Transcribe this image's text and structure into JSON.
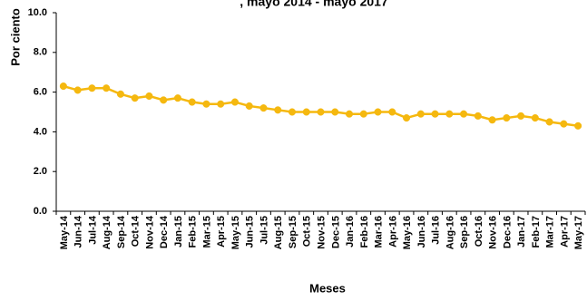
{
  "chart_data": {
    "type": "line",
    "title": ", mayo 2014 - mayo 2017",
    "xlabel": "Meses",
    "ylabel": "Por ciento",
    "ylim": [
      0,
      10
    ],
    "y_ticks": [
      "0.0",
      "2.0",
      "4.0",
      "6.0",
      "8.0",
      "10.0"
    ],
    "grid": false,
    "legend": "none",
    "colors": {
      "line": "#F5B80F",
      "marker": "#F5B80F",
      "axis": "#000000"
    },
    "categories": [
      "May-14",
      "Jun-14",
      "Jul-14",
      "Aug-14",
      "Sep-14",
      "Oct-14",
      "Nov-14",
      "Dec-14",
      "Jan-15",
      "Feb-15",
      "Mar-15",
      "Apr-15",
      "May-15",
      "Jun-15",
      "Jul-15",
      "Aug-15",
      "Sep-15",
      "Oct-15",
      "Nov-15",
      "Dec-15",
      "Jan-16",
      "Feb-16",
      "Mar-16",
      "Apr-16",
      "May-16",
      "Jun-16",
      "Jul-16",
      "Aug-16",
      "Sep-16",
      "Oct-16",
      "Nov-16",
      "Dec-16",
      "Jan-17",
      "Feb-17",
      "Mar-17",
      "Apr-17",
      "May-17"
    ],
    "series": [
      {
        "values": [
          6.3,
          6.1,
          6.2,
          6.2,
          5.9,
          5.7,
          5.8,
          5.6,
          5.7,
          5.5,
          5.4,
          5.4,
          5.5,
          5.3,
          5.2,
          5.1,
          5.0,
          5.0,
          5.0,
          5.0,
          4.9,
          4.9,
          5.0,
          5.0,
          4.7,
          4.9,
          4.9,
          4.9,
          4.9,
          4.8,
          4.6,
          4.7,
          4.8,
          4.7,
          4.5,
          4.4,
          4.3
        ]
      }
    ]
  }
}
